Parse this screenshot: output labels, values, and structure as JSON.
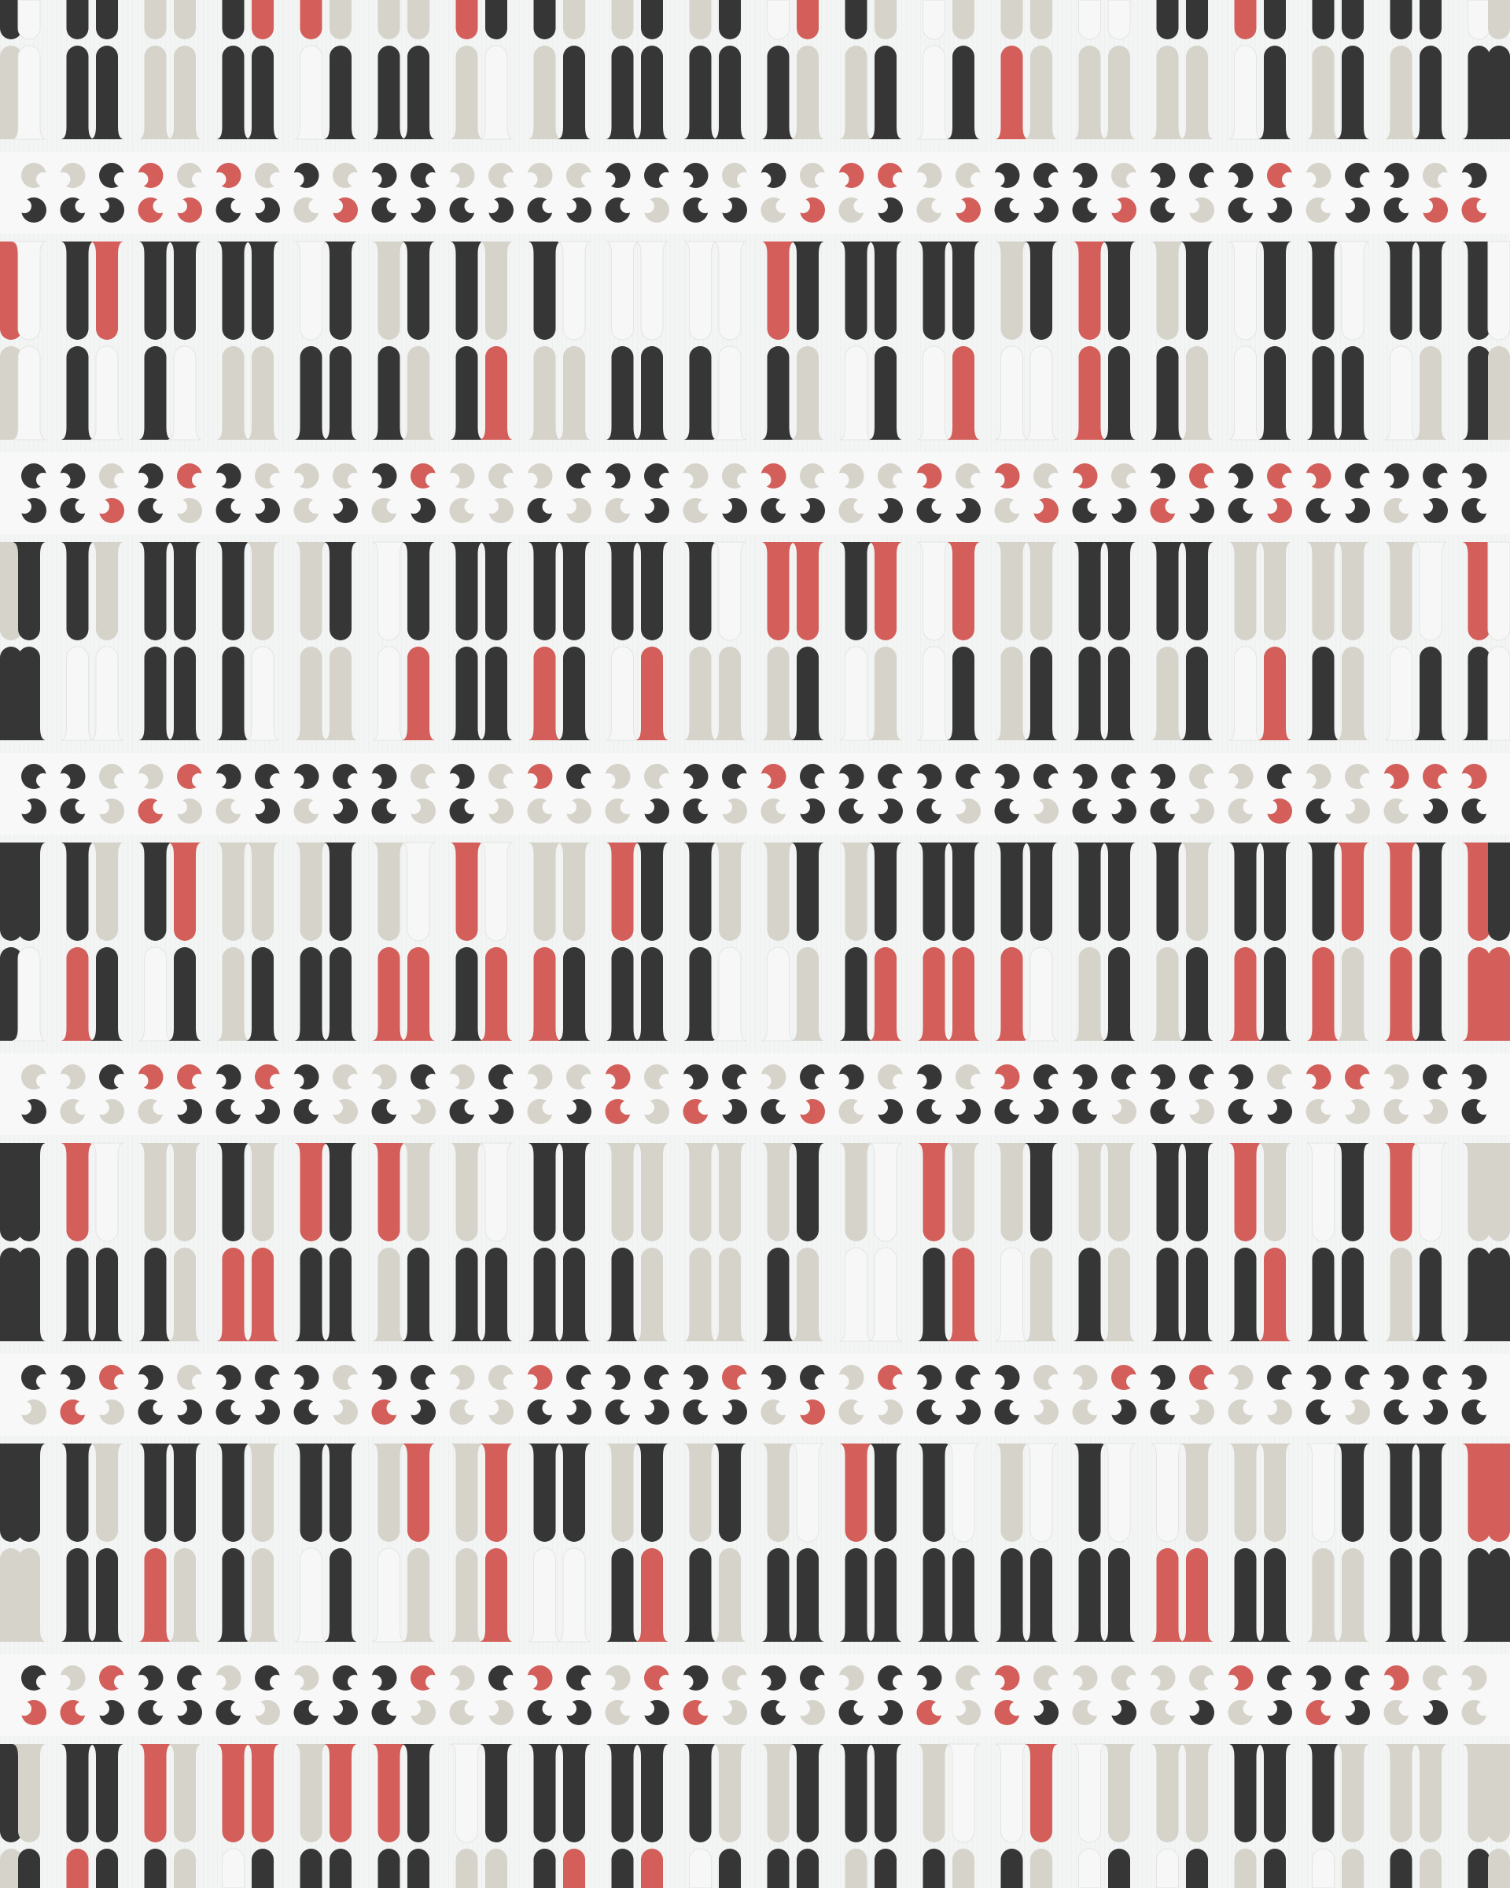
{
  "artwork": {
    "type": "repeating geometric pattern",
    "motifs": [
      "vertical-rounded-bars",
      "crescent-quatrefoil-band"
    ],
    "colors": {
      "background": "#f3f5f4",
      "band": "#f7f8f7",
      "dark": "#363636",
      "beige": "#d5d3ca",
      "red": "#d35e5a",
      "white": "#f6f7f6",
      "outline": "#e3e5e3"
    }
  }
}
